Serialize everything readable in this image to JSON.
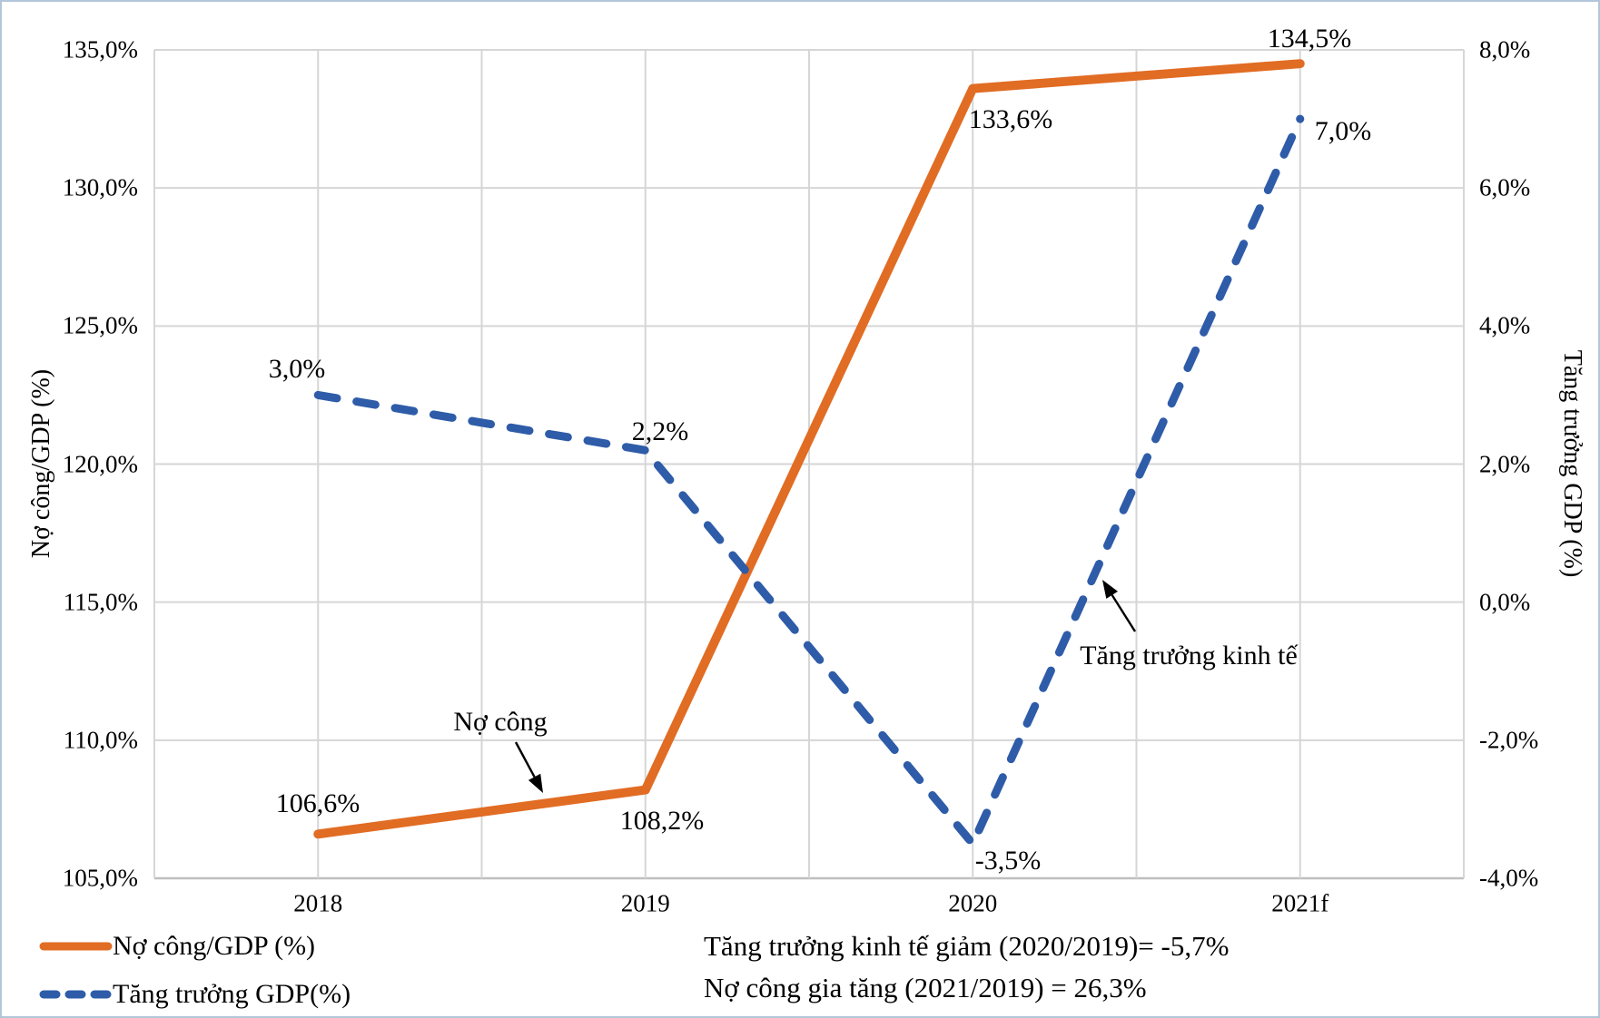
{
  "chart_data": {
    "type": "line",
    "categories": [
      "2018",
      "2019",
      "2020",
      "2021f"
    ],
    "series": [
      {
        "name": "Nợ công/GDP (%)",
        "axis": "left",
        "style": "solid",
        "color": "#E16C24",
        "values": [
          106.6,
          108.2,
          133.6,
          134.5
        ],
        "labels": [
          "106,6%",
          "108,2%",
          "133,6%",
          "134,5%"
        ]
      },
      {
        "name": "Tăng trưởng GDP(%)",
        "axis": "right",
        "style": "dashed",
        "color": "#2E5CA8",
        "values": [
          3.0,
          2.2,
          -3.5,
          7.0
        ],
        "labels": [
          "3,0%",
          "2,2%",
          "-3,5%",
          "7,0%"
        ]
      }
    ],
    "left_axis": {
      "title": "Nợ công/GDP (%)",
      "min": 105,
      "max": 135,
      "ticks": [
        "135,0%",
        "130,0%",
        "125,0%",
        "120,0%",
        "115,0%",
        "110,0%",
        "105,0%"
      ]
    },
    "right_axis": {
      "title": "Tăng trưởng GDP (%)",
      "min": -4,
      "max": 8,
      "ticks": [
        "8,0%",
        "6,0%",
        "4,0%",
        "2,0%",
        "0,0%",
        "-2,0%",
        "-4,0%"
      ]
    },
    "grid": true,
    "legend_position": "bottom-left",
    "grid_color": "#D6D6D6",
    "axis_line_color": "#BFBFBF"
  },
  "annotations": {
    "no_cong": "Nợ công",
    "tang_truong": "Tăng trưởng kinh tế",
    "note_line1": "Tăng trưởng kinh tế giảm (2020/2019)= -5,7%",
    "note_line2": "Nợ công gia tăng (2021/2019) = 26,3%"
  }
}
